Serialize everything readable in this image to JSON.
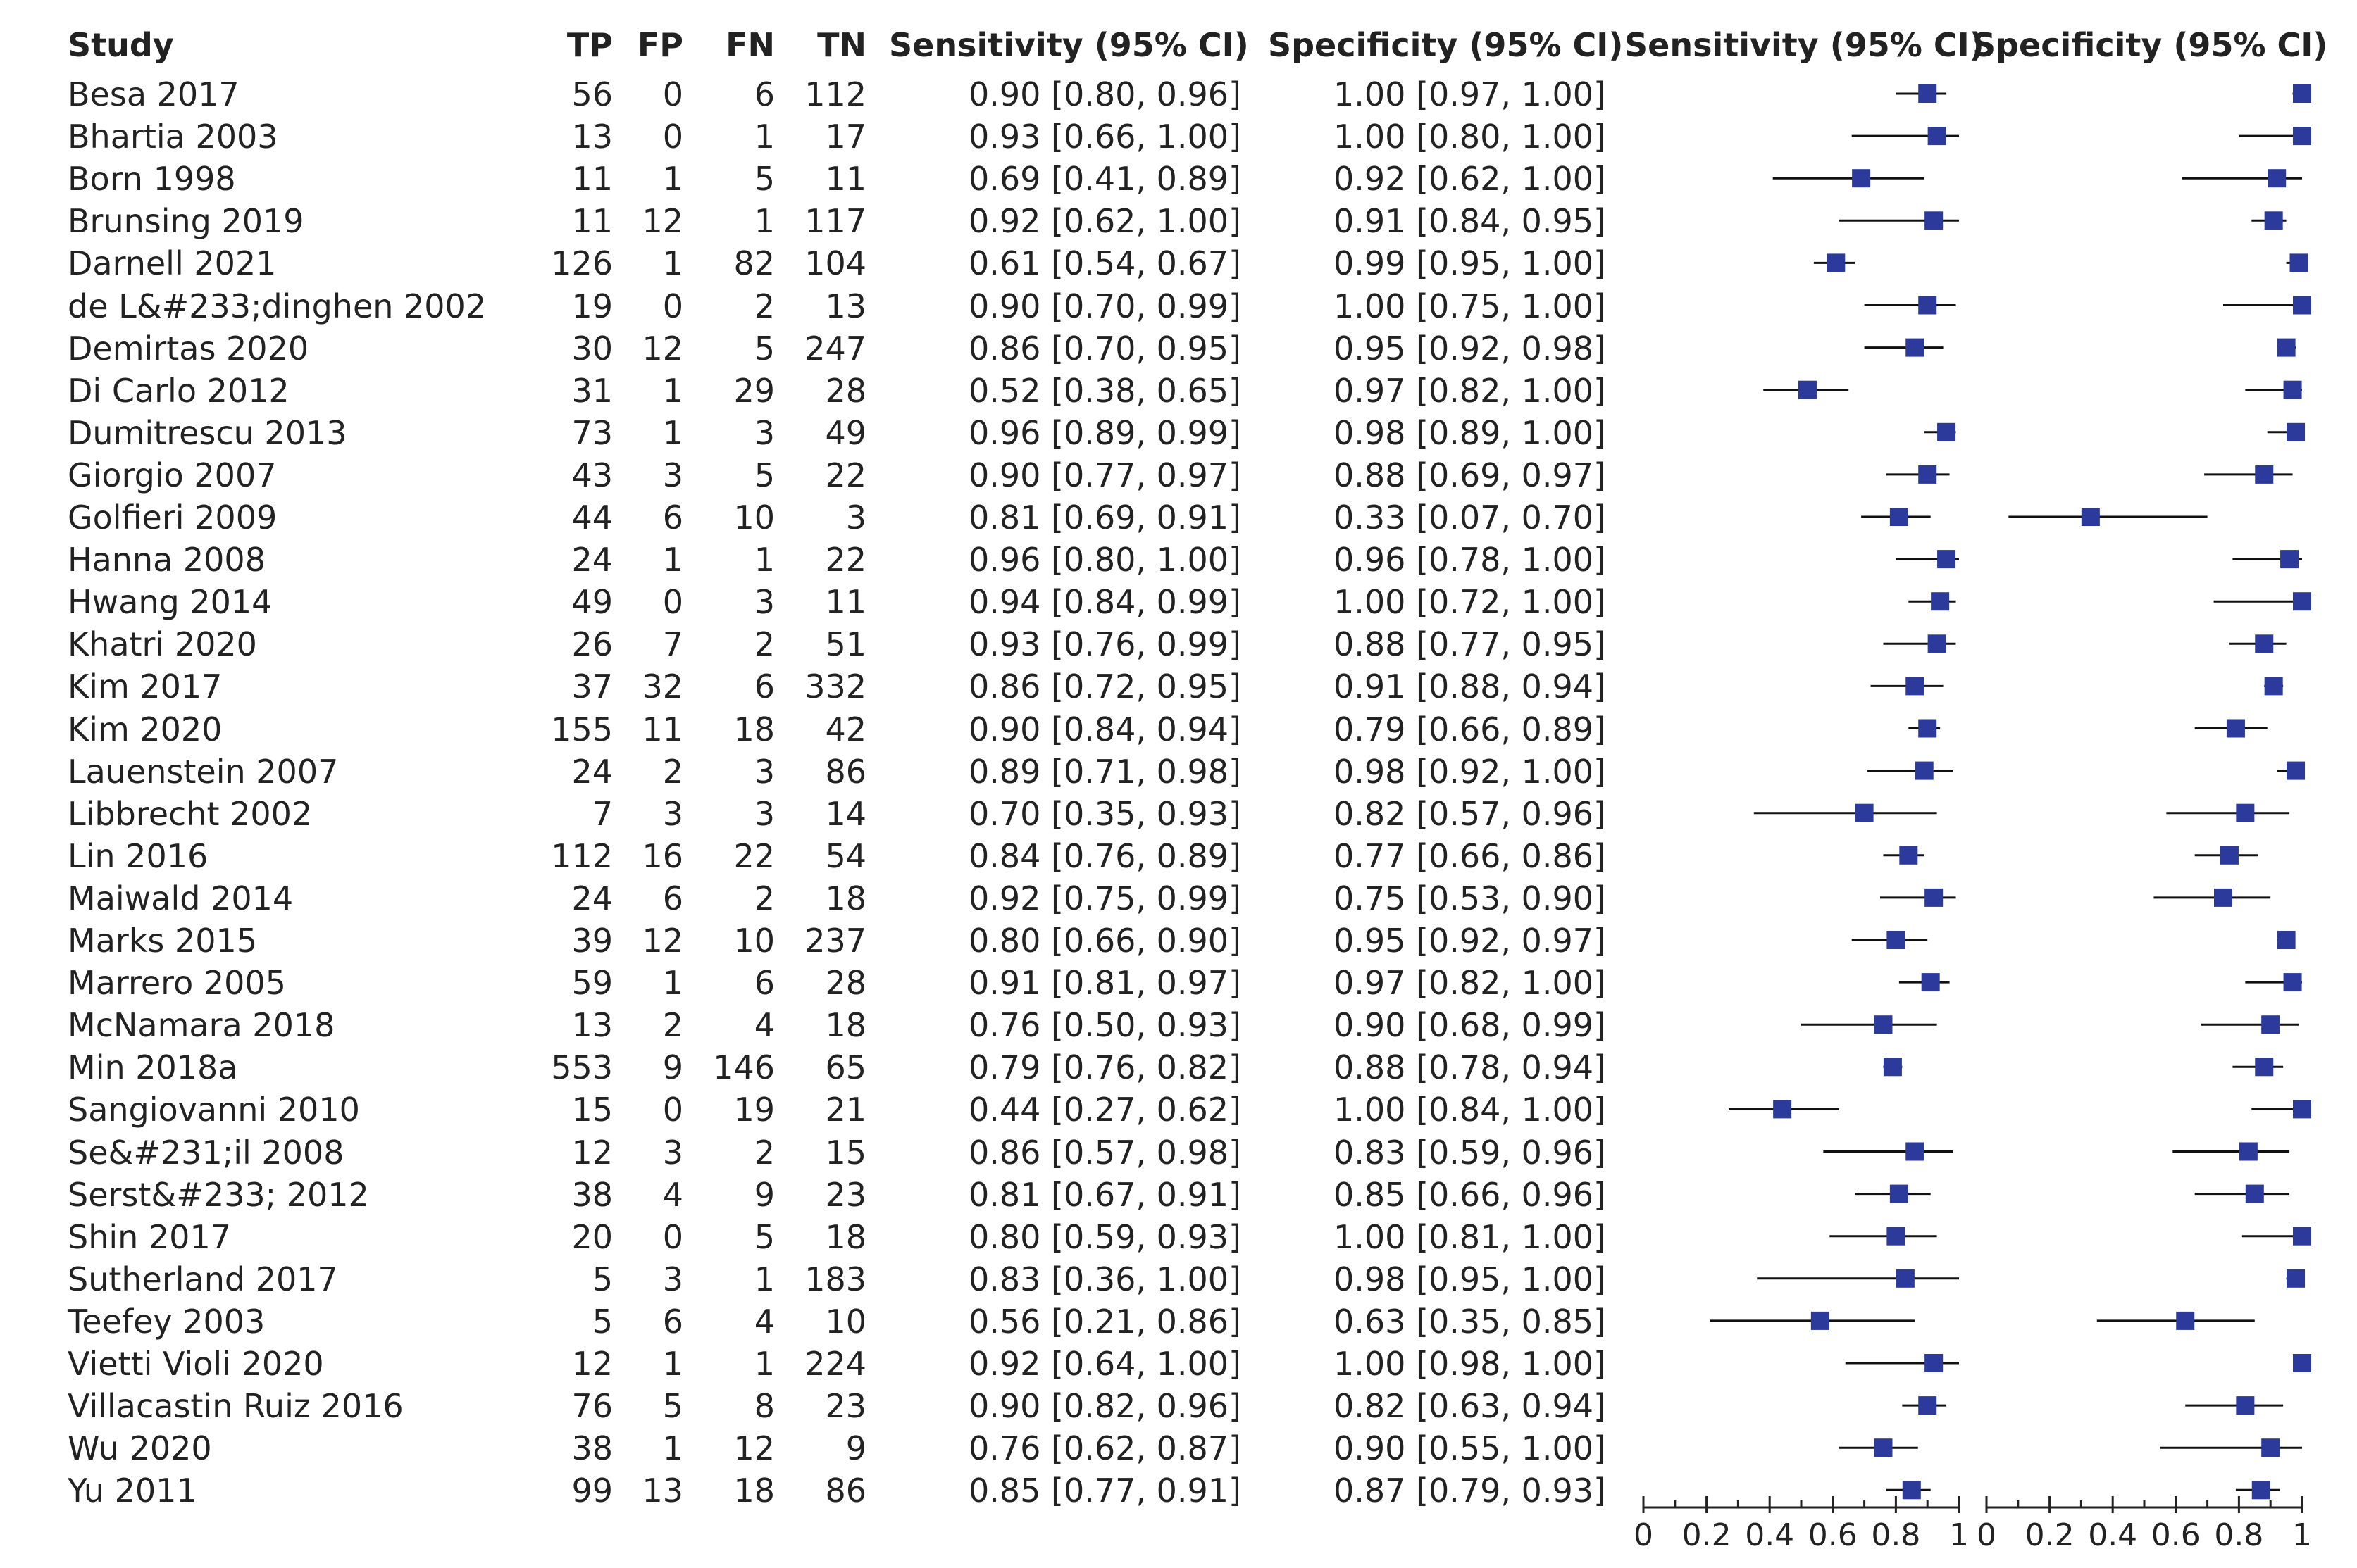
{
  "headers": {
    "study": "Study",
    "tp": "TP",
    "fp": "FP",
    "fn": "FN",
    "tn": "TN",
    "sens_ci": "Sensitivity (95% CI)",
    "spec_ci": "Specificity (95% CI)",
    "sens_plot": "Sensitivity (95% CI)",
    "spec_plot": "Specificity (95% CI)"
  },
  "rows": [
    {
      "study": "Besa 2017",
      "tp": "56",
      "fp": "0",
      "fn": "6",
      "tn": "112",
      "sens": "0.90 [0.80, 0.96]",
      "spec": "1.00 [0.97, 1.00]"
    },
    {
      "study": "Bhartia 2003",
      "tp": "13",
      "fp": "0",
      "fn": "1",
      "tn": "17",
      "sens": "0.93 [0.66, 1.00]",
      "spec": "1.00 [0.80, 1.00]"
    },
    {
      "study": "Born 1998",
      "tp": "11",
      "fp": "1",
      "fn": "5",
      "tn": "11",
      "sens": "0.69 [0.41, 0.89]",
      "spec": "0.92 [0.62, 1.00]"
    },
    {
      "study": "Brunsing 2019",
      "tp": "11",
      "fp": "12",
      "fn": "1",
      "tn": "117",
      "sens": "0.92 [0.62, 1.00]",
      "spec": "0.91 [0.84, 0.95]"
    },
    {
      "study": "Darnell 2021",
      "tp": "126",
      "fp": "1",
      "fn": "82",
      "tn": "104",
      "sens": "0.61 [0.54, 0.67]",
      "spec": "0.99 [0.95, 1.00]"
    },
    {
      "study": "de L&#233;dinghen 2002",
      "tp": "19",
      "fp": "0",
      "fn": "2",
      "tn": "13",
      "sens": "0.90 [0.70, 0.99]",
      "spec": "1.00 [0.75, 1.00]"
    },
    {
      "study": "Demirtas 2020",
      "tp": "30",
      "fp": "12",
      "fn": "5",
      "tn": "247",
      "sens": "0.86 [0.70, 0.95]",
      "spec": "0.95 [0.92, 0.98]"
    },
    {
      "study": "Di Carlo 2012",
      "tp": "31",
      "fp": "1",
      "fn": "29",
      "tn": "28",
      "sens": "0.52 [0.38, 0.65]",
      "spec": "0.97 [0.82, 1.00]"
    },
    {
      "study": "Dumitrescu 2013",
      "tp": "73",
      "fp": "1",
      "fn": "3",
      "tn": "49",
      "sens": "0.96 [0.89, 0.99]",
      "spec": "0.98 [0.89, 1.00]"
    },
    {
      "study": "Giorgio 2007",
      "tp": "43",
      "fp": "3",
      "fn": "5",
      "tn": "22",
      "sens": "0.90 [0.77, 0.97]",
      "spec": "0.88 [0.69, 0.97]"
    },
    {
      "study": "Golfieri 2009",
      "tp": "44",
      "fp": "6",
      "fn": "10",
      "tn": "3",
      "sens": "0.81 [0.69, 0.91]",
      "spec": "0.33 [0.07, 0.70]"
    },
    {
      "study": "Hanna 2008",
      "tp": "24",
      "fp": "1",
      "fn": "1",
      "tn": "22",
      "sens": "0.96 [0.80, 1.00]",
      "spec": "0.96 [0.78, 1.00]"
    },
    {
      "study": "Hwang 2014",
      "tp": "49",
      "fp": "0",
      "fn": "3",
      "tn": "11",
      "sens": "0.94 [0.84, 0.99]",
      "spec": "1.00 [0.72, 1.00]"
    },
    {
      "study": "Khatri 2020",
      "tp": "26",
      "fp": "7",
      "fn": "2",
      "tn": "51",
      "sens": "0.93 [0.76, 0.99]",
      "spec": "0.88 [0.77, 0.95]"
    },
    {
      "study": "Kim 2017",
      "tp": "37",
      "fp": "32",
      "fn": "6",
      "tn": "332",
      "sens": "0.86 [0.72, 0.95]",
      "spec": "0.91 [0.88, 0.94]"
    },
    {
      "study": "Kim 2020",
      "tp": "155",
      "fp": "11",
      "fn": "18",
      "tn": "42",
      "sens": "0.90 [0.84, 0.94]",
      "spec": "0.79 [0.66, 0.89]"
    },
    {
      "study": "Lauenstein 2007",
      "tp": "24",
      "fp": "2",
      "fn": "3",
      "tn": "86",
      "sens": "0.89 [0.71, 0.98]",
      "spec": "0.98 [0.92, 1.00]"
    },
    {
      "study": "Libbrecht 2002",
      "tp": "7",
      "fp": "3",
      "fn": "3",
      "tn": "14",
      "sens": "0.70 [0.35, 0.93]",
      "spec": "0.82 [0.57, 0.96]"
    },
    {
      "study": "Lin 2016",
      "tp": "112",
      "fp": "16",
      "fn": "22",
      "tn": "54",
      "sens": "0.84 [0.76, 0.89]",
      "spec": "0.77 [0.66, 0.86]"
    },
    {
      "study": "Maiwald 2014",
      "tp": "24",
      "fp": "6",
      "fn": "2",
      "tn": "18",
      "sens": "0.92 [0.75, 0.99]",
      "spec": "0.75 [0.53, 0.90]"
    },
    {
      "study": "Marks 2015",
      "tp": "39",
      "fp": "12",
      "fn": "10",
      "tn": "237",
      "sens": "0.80 [0.66, 0.90]",
      "spec": "0.95 [0.92, 0.97]"
    },
    {
      "study": "Marrero 2005",
      "tp": "59",
      "fp": "1",
      "fn": "6",
      "tn": "28",
      "sens": "0.91 [0.81, 0.97]",
      "spec": "0.97 [0.82, 1.00]"
    },
    {
      "study": "McNamara 2018",
      "tp": "13",
      "fp": "2",
      "fn": "4",
      "tn": "18",
      "sens": "0.76 [0.50, 0.93]",
      "spec": "0.90 [0.68, 0.99]"
    },
    {
      "study": "Min 2018a",
      "tp": "553",
      "fp": "9",
      "fn": "146",
      "tn": "65",
      "sens": "0.79 [0.76, 0.82]",
      "spec": "0.88 [0.78, 0.94]"
    },
    {
      "study": "Sangiovanni 2010",
      "tp": "15",
      "fp": "0",
      "fn": "19",
      "tn": "21",
      "sens": "0.44 [0.27, 0.62]",
      "spec": "1.00 [0.84, 1.00]"
    },
    {
      "study": "Se&#231;il 2008",
      "tp": "12",
      "fp": "3",
      "fn": "2",
      "tn": "15",
      "sens": "0.86 [0.57, 0.98]",
      "spec": "0.83 [0.59, 0.96]"
    },
    {
      "study": "Serst&#233; 2012",
      "tp": "38",
      "fp": "4",
      "fn": "9",
      "tn": "23",
      "sens": "0.81 [0.67, 0.91]",
      "spec": "0.85 [0.66, 0.96]"
    },
    {
      "study": "Shin 2017",
      "tp": "20",
      "fp": "0",
      "fn": "5",
      "tn": "18",
      "sens": "0.80 [0.59, 0.93]",
      "spec": "1.00 [0.81, 1.00]"
    },
    {
      "study": "Sutherland 2017",
      "tp": "5",
      "fp": "3",
      "fn": "1",
      "tn": "183",
      "sens": "0.83 [0.36, 1.00]",
      "spec": "0.98 [0.95, 1.00]"
    },
    {
      "study": "Teefey 2003",
      "tp": "5",
      "fp": "6",
      "fn": "4",
      "tn": "10",
      "sens": "0.56 [0.21, 0.86]",
      "spec": "0.63 [0.35, 0.85]"
    },
    {
      "study": "Vietti Violi 2020",
      "tp": "12",
      "fp": "1",
      "fn": "1",
      "tn": "224",
      "sens": "0.92 [0.64, 1.00]",
      "spec": "1.00 [0.98, 1.00]"
    },
    {
      "study": "Villacastin Ruiz 2016",
      "tp": "76",
      "fp": "5",
      "fn": "8",
      "tn": "23",
      "sens": "0.90 [0.82, 0.96]",
      "spec": "0.82 [0.63, 0.94]"
    },
    {
      "study": "Wu 2020",
      "tp": "38",
      "fp": "1",
      "fn": "12",
      "tn": "9",
      "sens": "0.76 [0.62, 0.87]",
      "spec": "0.90 [0.55, 1.00]"
    },
    {
      "study": "Yu 2011",
      "tp": "99",
      "fp": "13",
      "fn": "18",
      "tn": "86",
      "sens": "0.85 [0.77, 0.91]",
      "spec": "0.87 [0.79, 0.93]"
    }
  ],
  "chart_data": {
    "type": "forest",
    "panels": [
      {
        "name": "Sensitivity (95% CI)",
        "xlim": [
          0,
          1
        ],
        "ticks": [
          "0",
          "0.2",
          "0.4",
          "0.6",
          "0.8",
          "1"
        ]
      },
      {
        "name": "Specificity (95% CI)",
        "xlim": [
          0,
          1
        ],
        "ticks": [
          "0",
          "0.2",
          "0.4",
          "0.6",
          "0.8",
          "1"
        ]
      }
    ],
    "sensitivity": [
      [
        0.9,
        0.8,
        0.96
      ],
      [
        0.93,
        0.66,
        1.0
      ],
      [
        0.69,
        0.41,
        0.89
      ],
      [
        0.92,
        0.62,
        1.0
      ],
      [
        0.61,
        0.54,
        0.67
      ],
      [
        0.9,
        0.7,
        0.99
      ],
      [
        0.86,
        0.7,
        0.95
      ],
      [
        0.52,
        0.38,
        0.65
      ],
      [
        0.96,
        0.89,
        0.99
      ],
      [
        0.9,
        0.77,
        0.97
      ],
      [
        0.81,
        0.69,
        0.91
      ],
      [
        0.96,
        0.8,
        1.0
      ],
      [
        0.94,
        0.84,
        0.99
      ],
      [
        0.93,
        0.76,
        0.99
      ],
      [
        0.86,
        0.72,
        0.95
      ],
      [
        0.9,
        0.84,
        0.94
      ],
      [
        0.89,
        0.71,
        0.98
      ],
      [
        0.7,
        0.35,
        0.93
      ],
      [
        0.84,
        0.76,
        0.89
      ],
      [
        0.92,
        0.75,
        0.99
      ],
      [
        0.8,
        0.66,
        0.9
      ],
      [
        0.91,
        0.81,
        0.97
      ],
      [
        0.76,
        0.5,
        0.93
      ],
      [
        0.79,
        0.76,
        0.82
      ],
      [
        0.44,
        0.27,
        0.62
      ],
      [
        0.86,
        0.57,
        0.98
      ],
      [
        0.81,
        0.67,
        0.91
      ],
      [
        0.8,
        0.59,
        0.93
      ],
      [
        0.83,
        0.36,
        1.0
      ],
      [
        0.56,
        0.21,
        0.86
      ],
      [
        0.92,
        0.64,
        1.0
      ],
      [
        0.9,
        0.82,
        0.96
      ],
      [
        0.76,
        0.62,
        0.87
      ],
      [
        0.85,
        0.77,
        0.91
      ]
    ],
    "specificity": [
      [
        1.0,
        0.97,
        1.0
      ],
      [
        1.0,
        0.8,
        1.0
      ],
      [
        0.92,
        0.62,
        1.0
      ],
      [
        0.91,
        0.84,
        0.95
      ],
      [
        0.99,
        0.95,
        1.0
      ],
      [
        1.0,
        0.75,
        1.0
      ],
      [
        0.95,
        0.92,
        0.98
      ],
      [
        0.97,
        0.82,
        1.0
      ],
      [
        0.98,
        0.89,
        1.0
      ],
      [
        0.88,
        0.69,
        0.97
      ],
      [
        0.33,
        0.07,
        0.7
      ],
      [
        0.96,
        0.78,
        1.0
      ],
      [
        1.0,
        0.72,
        1.0
      ],
      [
        0.88,
        0.77,
        0.95
      ],
      [
        0.91,
        0.88,
        0.94
      ],
      [
        0.79,
        0.66,
        0.89
      ],
      [
        0.98,
        0.92,
        1.0
      ],
      [
        0.82,
        0.57,
        0.96
      ],
      [
        0.77,
        0.66,
        0.86
      ],
      [
        0.75,
        0.53,
        0.9
      ],
      [
        0.95,
        0.92,
        0.97
      ],
      [
        0.97,
        0.82,
        1.0
      ],
      [
        0.9,
        0.68,
        0.99
      ],
      [
        0.88,
        0.78,
        0.94
      ],
      [
        1.0,
        0.84,
        1.0
      ],
      [
        0.83,
        0.59,
        0.96
      ],
      [
        0.85,
        0.66,
        0.96
      ],
      [
        1.0,
        0.81,
        1.0
      ],
      [
        0.98,
        0.95,
        1.0
      ],
      [
        0.63,
        0.35,
        0.85
      ],
      [
        1.0,
        0.98,
        1.0
      ],
      [
        0.82,
        0.63,
        0.94
      ],
      [
        0.9,
        0.55,
        1.0
      ],
      [
        0.87,
        0.79,
        0.93
      ]
    ],
    "colors": {
      "marker": "#2b3a9b",
      "line": "#111111",
      "axis": "#222222"
    }
  }
}
